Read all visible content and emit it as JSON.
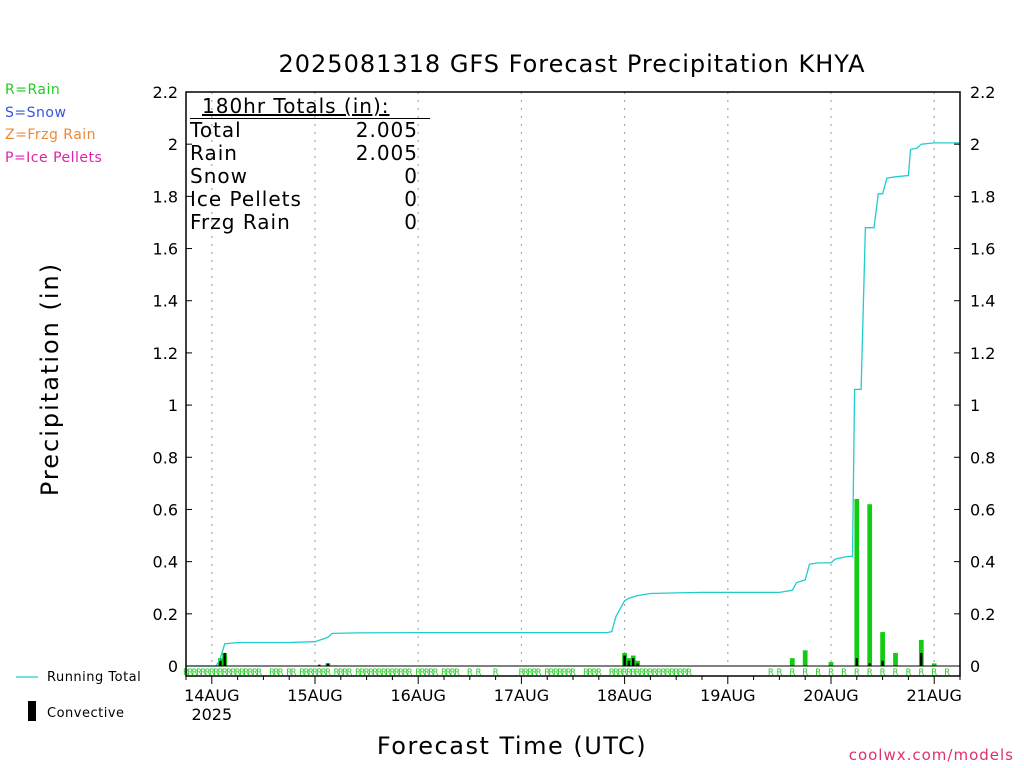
{
  "title": "2025081318 GFS Forecast Precipitation KHYA",
  "xlabel": "Forecast Time (UTC)",
  "ylabel": "Precipitation (in)",
  "credit": "coolwx.com/models",
  "type_legend": [
    {
      "text": "R=Rain",
      "color": "#22cc22"
    },
    {
      "text": "S=Snow",
      "color": "#3355dd"
    },
    {
      "text": "Z=Frzg Rain",
      "color": "#ee8833"
    },
    {
      "text": "P=Ice Pellets",
      "color": "#dd22aa"
    }
  ],
  "bottom_legend": {
    "running_total": "Running Total",
    "convective": "Convective"
  },
  "totals_box": {
    "header": "180hr Totals (in):",
    "rows": [
      {
        "label": "Total",
        "value": "2.005"
      },
      {
        "label": "Rain",
        "value": "2.005"
      },
      {
        "label": "Snow",
        "value": "0"
      },
      {
        "label": "Ice Pellets",
        "value": "0"
      },
      {
        "label": "Frzg Rain",
        "value": "0"
      }
    ]
  },
  "colors": {
    "running_total": "#22cccc",
    "precip_bar": "#11cc11",
    "convective": "#000000",
    "rain_marker": "#22cc22"
  },
  "chart_data": {
    "type": "bar",
    "x_unit": "forecast hour",
    "x_range": [
      0,
      180
    ],
    "ylim": [
      0,
      2.2
    ],
    "yticks": [
      "0",
      "0.2",
      "0.4",
      "0.6",
      "0.8",
      "1",
      "1.2",
      "1.4",
      "1.6",
      "1.8",
      "2",
      "2.2"
    ],
    "xticks": [
      {
        "hour": 6,
        "label": "14AUG",
        "sublabel": "2025"
      },
      {
        "hour": 30,
        "label": "15AUG",
        "sublabel": ""
      },
      {
        "hour": 54,
        "label": "16AUG",
        "sublabel": ""
      },
      {
        "hour": 78,
        "label": "17AUG",
        "sublabel": ""
      },
      {
        "hour": 102,
        "label": "18AUG",
        "sublabel": ""
      },
      {
        "hour": 126,
        "label": "19AUG",
        "sublabel": ""
      },
      {
        "hour": 150,
        "label": "20AUG",
        "sublabel": ""
      },
      {
        "hour": 174,
        "label": "21AUG",
        "sublabel": ""
      }
    ],
    "precip_bars": [
      {
        "hour": 8,
        "value": 0.03
      },
      {
        "hour": 9,
        "value": 0.05
      },
      {
        "hour": 33,
        "value": 0.01
      },
      {
        "hour": 102,
        "value": 0.05
      },
      {
        "hour": 103,
        "value": 0.03
      },
      {
        "hour": 104,
        "value": 0.04
      },
      {
        "hour": 105,
        "value": 0.02
      },
      {
        "hour": 141,
        "value": 0.03
      },
      {
        "hour": 144,
        "value": 0.06
      },
      {
        "hour": 150,
        "value": 0.015
      },
      {
        "hour": 156,
        "value": 0.64
      },
      {
        "hour": 159,
        "value": 0.62
      },
      {
        "hour": 162,
        "value": 0.13
      },
      {
        "hour": 165,
        "value": 0.05
      },
      {
        "hour": 171,
        "value": 0.1
      },
      {
        "hour": 174,
        "value": 0.01
      }
    ],
    "convective_bars": [
      {
        "hour": 8,
        "value": 0.02
      },
      {
        "hour": 9,
        "value": 0.05
      },
      {
        "hour": 31,
        "value": 0.005
      },
      {
        "hour": 33,
        "value": 0.01
      },
      {
        "hour": 102,
        "value": 0.04
      },
      {
        "hour": 103,
        "value": 0.02
      },
      {
        "hour": 104,
        "value": 0.03
      },
      {
        "hour": 105,
        "value": 0.01
      },
      {
        "hour": 156,
        "value": 0.03
      },
      {
        "hour": 159,
        "value": 0.01
      },
      {
        "hour": 162,
        "value": 0.02
      },
      {
        "hour": 171,
        "value": 0.05
      }
    ],
    "running_total": [
      [
        0,
        0
      ],
      [
        7,
        0
      ],
      [
        8,
        0.03
      ],
      [
        9,
        0.085
      ],
      [
        12,
        0.09
      ],
      [
        24,
        0.09
      ],
      [
        30,
        0.093
      ],
      [
        33,
        0.11
      ],
      [
        34,
        0.125
      ],
      [
        40,
        0.127
      ],
      [
        54,
        0.128
      ],
      [
        78,
        0.128
      ],
      [
        98,
        0.128
      ],
      [
        99,
        0.132
      ],
      [
        100,
        0.19
      ],
      [
        102,
        0.25
      ],
      [
        103,
        0.26
      ],
      [
        105,
        0.27
      ],
      [
        108,
        0.278
      ],
      [
        114,
        0.28
      ],
      [
        120,
        0.282
      ],
      [
        138,
        0.282
      ],
      [
        141,
        0.29
      ],
      [
        142,
        0.32
      ],
      [
        144,
        0.33
      ],
      [
        145,
        0.39
      ],
      [
        147,
        0.395
      ],
      [
        150,
        0.395
      ],
      [
        151,
        0.41
      ],
      [
        154,
        0.42
      ],
      [
        155,
        0.42
      ],
      [
        155.5,
        1.06
      ],
      [
        157,
        1.06
      ],
      [
        158,
        1.68
      ],
      [
        160,
        1.68
      ],
      [
        161,
        1.81
      ],
      [
        162,
        1.81
      ],
      [
        163,
        1.87
      ],
      [
        165,
        1.875
      ],
      [
        168,
        1.88
      ],
      [
        168.5,
        1.98
      ],
      [
        170,
        1.985
      ],
      [
        171,
        2.0
      ],
      [
        174,
        2.005
      ],
      [
        180,
        2.005
      ]
    ],
    "rain_type_markers": {
      "symbol": "R",
      "hours": [
        0,
        1,
        2,
        3,
        4,
        5,
        6,
        7,
        8,
        9,
        10,
        11,
        12,
        13,
        14,
        15,
        16,
        17,
        20,
        21,
        22,
        24,
        25,
        27,
        28,
        29,
        30,
        31,
        32,
        33,
        35,
        36,
        37,
        38,
        40,
        41,
        42,
        43,
        44,
        45,
        46,
        47,
        48,
        49,
        50,
        51,
        52,
        54,
        55,
        56,
        57,
        58,
        60,
        61,
        62,
        63,
        66,
        68,
        72,
        78,
        79,
        80,
        81,
        82,
        84,
        85,
        86,
        87,
        88,
        89,
        90,
        93,
        94,
        95,
        96,
        99,
        100,
        101,
        102,
        103,
        104,
        105,
        106,
        107,
        108,
        109,
        110,
        111,
        112,
        113,
        114,
        115,
        116,
        117,
        136,
        138,
        141,
        144,
        147,
        150,
        153,
        156,
        159,
        162,
        165,
        168,
        171,
        174,
        177
      ]
    }
  }
}
